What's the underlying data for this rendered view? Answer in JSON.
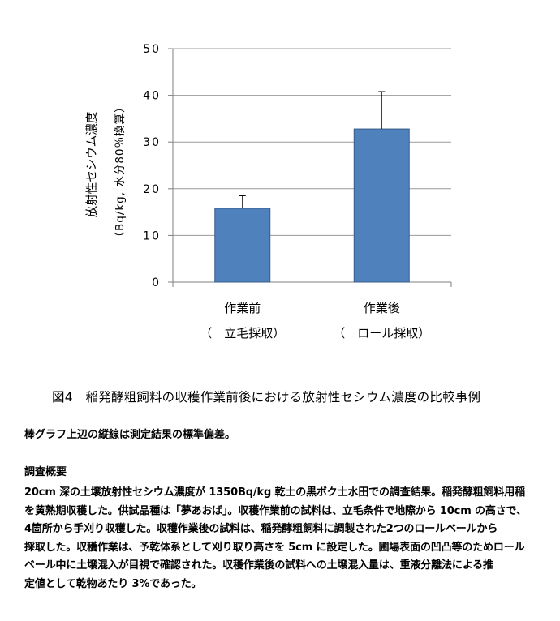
{
  "chart_data": {
    "type": "bar",
    "categories": [
      {
        "name": "作業前",
        "sub": "（　立毛採取）"
      },
      {
        "name": "作業後",
        "sub": "（　ロール採取）"
      }
    ],
    "values": [
      15.8,
      32.8
    ],
    "error": [
      2.7,
      8.0
    ],
    "ylabel_line1": "放射性セシウム濃度",
    "ylabel_line2": "（Bq/kg, 水分80％換算）",
    "ylim": [
      0,
      50
    ],
    "yticks": [
      "0",
      "10",
      "20",
      "30",
      "40",
      "50"
    ],
    "grid": true,
    "bar_color": "#4f81bd",
    "bar_edge_color": "#385d8a"
  },
  "caption": "図4　稲発酵粗飼料の収穫作業前後における放射性セシウム濃度の比較事例",
  "note": "棒グラフ上辺の縦線は測定結果の標準偏差。",
  "summary": {
    "heading": "調査概要",
    "lines": [
      "20cm 深の土壌放射性セシウム濃度が 1350Bq/kg 乾土の黒ボク土水田での調査結果。稲発酵粗飼料用稲",
      "を黄熟期収穫した。供試品種は「夢あおば」。収穫作業前の試料は、立毛条件で地際から 10cm の高さで、",
      "4箇所から手刈り収穫した。収穫作業後の試料は、稲発酵粗飼料に調製された2つのロールベールから",
      "採取した。収穫作業は、予乾体系として刈り取り高さを 5cm に設定した。圃場表面の凹凸等のためロール",
      "ベール中に土壌混入が目視で確認された。収穫作業後の試料への土壌混入量は、重液分離法による推",
      "定値として乾物あたり 3%であった。"
    ]
  }
}
